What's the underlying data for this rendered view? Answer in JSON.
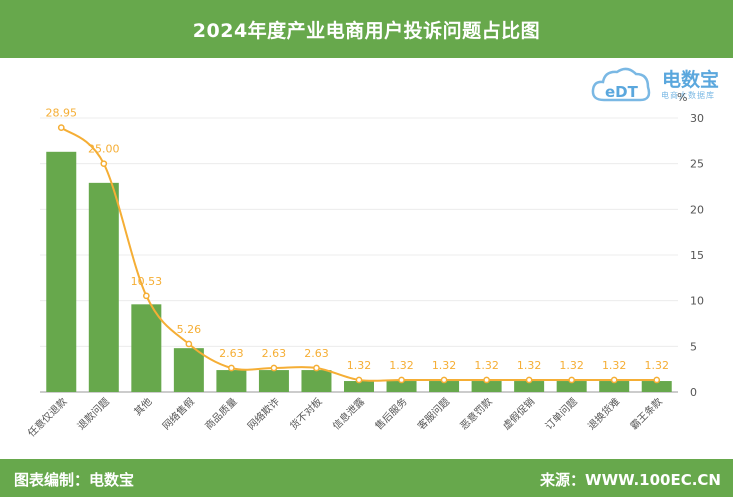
{
  "header": {
    "title": "2024年度产业电商用户投诉问题占比图"
  },
  "logo": {
    "mark": "eDT",
    "name": "电数宝",
    "subtitle": "电商大数据库"
  },
  "footer": {
    "left": "图表编制：电数宝",
    "right": "来源：WWW.100EC.CN"
  },
  "colors": {
    "bar": "#67a84c",
    "line": "#f5ae35",
    "header": "#67a84c",
    "logo": "#5aa7dd"
  },
  "chart_data": {
    "type": "bar",
    "title": "2024年度产业电商用户投诉问题占比图",
    "yunit": "%",
    "ylim": [
      0,
      30
    ],
    "yticks": [
      0,
      5,
      10,
      15,
      20,
      25,
      30
    ],
    "y_axis_position": "right",
    "grid": true,
    "categories": [
      "任意仅退款",
      "退款问题",
      "其他",
      "网络售假",
      "商品质量",
      "网络欺诈",
      "货不对板",
      "信息泄露",
      "售后服务",
      "客服问题",
      "恶意罚款",
      "虚假促销",
      "订单问题",
      "退换货难",
      "霸王条款"
    ],
    "series": [
      {
        "type": "bar",
        "values": [
          26.3,
          22.9,
          9.6,
          4.8,
          2.4,
          2.4,
          2.4,
          1.2,
          1.2,
          1.2,
          1.2,
          1.2,
          1.2,
          1.2,
          1.2
        ]
      },
      {
        "type": "line",
        "values": [
          28.95,
          25.0,
          10.53,
          5.26,
          2.63,
          2.63,
          2.63,
          1.32,
          1.32,
          1.32,
          1.32,
          1.32,
          1.32,
          1.32,
          1.32
        ],
        "labels": [
          "28.95",
          "25.00",
          "10.53",
          "5.26",
          "2.63",
          "2.63",
          "2.63",
          "1.32",
          "1.32",
          "1.32",
          "1.32",
          "1.32",
          "1.32",
          "1.32",
          "1.32"
        ]
      }
    ]
  }
}
